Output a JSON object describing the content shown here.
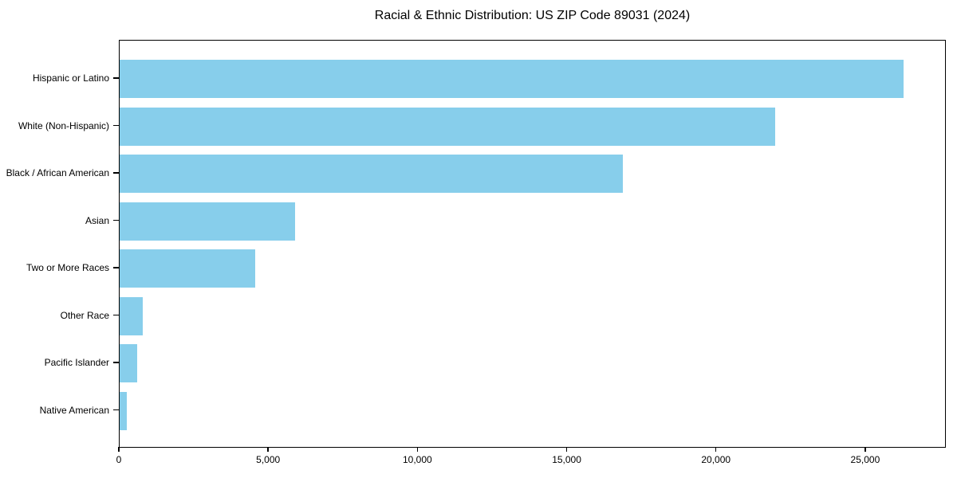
{
  "title": "Racial & Ethnic Distribution: US ZIP Code 89031 (2024)",
  "chart_data": {
    "type": "bar",
    "orientation": "horizontal",
    "title": "Racial & Ethnic Distribution: US ZIP Code 89031 (2024)",
    "xlabel": "",
    "ylabel": "",
    "categories": [
      "Hispanic or Latino",
      "White (Non-Hispanic)",
      "Black / African American",
      "Asian",
      "Two or More Races",
      "Other Race",
      "Pacific Islander",
      "Native American"
    ],
    "values": [
      26300,
      22000,
      16900,
      5900,
      4550,
      770,
      580,
      230
    ],
    "xlim": [
      0,
      27700
    ],
    "x_ticks": [
      0,
      5000,
      10000,
      15000,
      20000,
      25000
    ],
    "x_tick_labels": [
      "0",
      "5,000",
      "10,000",
      "15,000",
      "20,000",
      "25,000"
    ],
    "bar_color": "#87CEEB",
    "grid": false,
    "legend_position": "none"
  },
  "colors": {
    "bar": "#87CEEB",
    "axis": "#000000",
    "text": "#000000",
    "background": "#FFFFFF"
  }
}
